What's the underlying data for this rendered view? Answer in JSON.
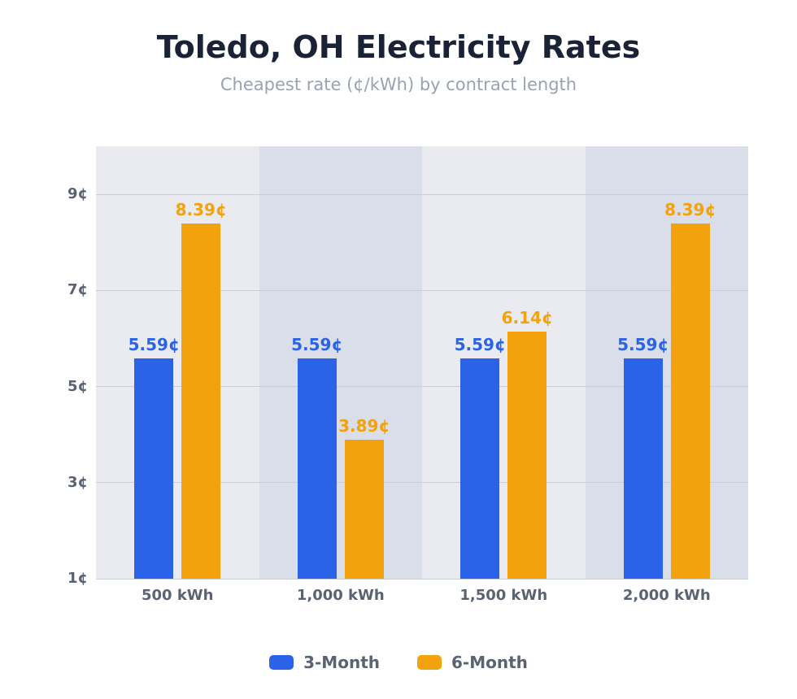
{
  "header": {
    "title": "Toledo, OH Electricity Rates",
    "subtitle": "Cheapest rate (¢/kWh) by contract length"
  },
  "chart_data": {
    "type": "bar",
    "title": "Toledo, OH Electricity Rates",
    "subtitle": "Cheapest rate (¢/kWh) by contract length",
    "categories": [
      "500 kWh",
      "1,000 kWh",
      "1,500 kWh",
      "2,000 kWh"
    ],
    "series": [
      {
        "name": "3-Month",
        "color": "#2b63e8",
        "values": [
          5.59,
          5.59,
          5.59,
          5.59
        ],
        "value_labels": [
          "5.59¢",
          "5.59¢",
          "5.59¢",
          "5.59¢"
        ]
      },
      {
        "name": "6-Month",
        "color": "#f2a20c",
        "values": [
          8.39,
          3.89,
          6.14,
          8.39
        ],
        "value_labels": [
          "8.39¢",
          "3.89¢",
          "6.14¢",
          "8.39¢"
        ]
      }
    ],
    "y_axis": {
      "min": 1,
      "max": 10,
      "ticks": [
        1,
        3,
        5,
        7,
        9
      ],
      "tick_labels": [
        "1¢",
        "3¢",
        "5¢",
        "7¢",
        "9¢"
      ],
      "unit": "¢/kWh"
    },
    "grid": true,
    "legend_position": "bottom",
    "colors": {
      "band_light": "#e9ebf1",
      "band_dark": "#d9dee8",
      "gridline": "#c9cdd6",
      "axis_text": "#5a6373",
      "title_text": "#1a2235",
      "subtitle_text": "#9aa2b1"
    }
  }
}
